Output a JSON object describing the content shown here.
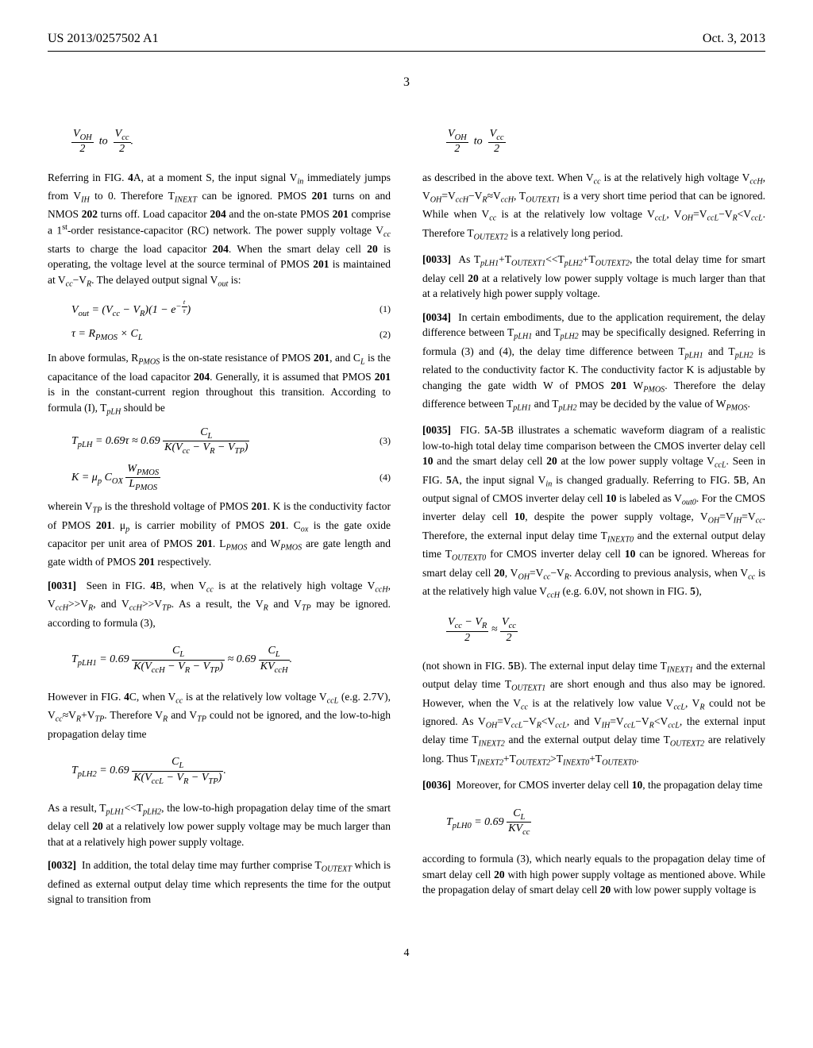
{
  "header": {
    "left": "US 2013/0257502 A1",
    "right": "Oct. 3, 2013"
  },
  "page_number_top": "3",
  "page_number_bottom": "4",
  "left_column": {
    "formula0": "V_OH/2 to V_cc/2.",
    "p1": "Referring in FIG. 4A, at a moment S, the input signal V_in immediately jumps from V_IH to 0. Therefore T_INEXT can be ignored. PMOS 201 turns on and NMOS 202 turns off. Load capacitor 204 and the on-state PMOS 201 comprise a 1st-order resistance-capacitor (RC) network. The power supply voltage V_cc starts to charge the load capacitor 204. When the smart delay cell 20 is operating, the voltage level at the source terminal of PMOS 201 is maintained at V_cc−V_R. The delayed output signal V_out is:",
    "eq1": "V_out = (V_cc − V_R)(1 − e^(−t/τ))",
    "eq1n": "(1)",
    "eq2": "τ = R_PMOS × C_L",
    "eq2n": "(2)",
    "p2": "In above formulas, R_PMOS is the on-state resistance of PMOS 201, and C_L is the capacitance of the load capacitor 204. Generally, it is assumed that PMOS 201 is in the constant-current region throughout this transition. According to formula (I), T_pLH should be",
    "eq3": "T_pLH = 0.69τ ≈ 0.69 C_L / K(V_cc − V_R − V_TP)",
    "eq3n": "(3)",
    "eq4": "K = μ_p C_OX  W_PMOS / L_PMOS",
    "eq4n": "(4)",
    "p3": "wherein V_TP is the threshold voltage of PMOS 201. K is the conductivity factor of PMOS 201. μ_p is carrier mobility of PMOS 201. C_ox is the gate oxide capacitor per unit area of PMOS 201. L_PMOS and W_PMOS are gate length and gate width of PMOS 201 respectively.",
    "p4_num": "[0031]",
    "p4": "Seen in FIG. 4B, when V_cc is at the relatively high voltage V_ccH, V_ccH>>V_R, and V_ccH>>V_TP. As a result, the V_R and V_TP may be ignored. according to formula (3),",
    "eq5": "T_pLH1 = 0.69 C_L / K(V_ccH − V_R − V_TP) ≈ 0.69 C_L / KV_ccH.",
    "p5": "However in FIG. 4C, when V_cc is at the relatively low voltage V_ccL (e.g. 2.7V), V_cc≈V_R+V_TP. Therefore V_R and V_TP could not be ignored, and the low-to-high propagation delay time",
    "eq6": "T_pLH2 = 0.69 C_L / K(V_ccL − V_R − V_TP).",
    "p6": "As a result, T_pLH1<<T_pLH2, the low-to-high propagation delay time of the smart delay cell 20 at a relatively low power supply voltage may be much larger than that at a relatively high power supply voltage.",
    "p7_num": "[0032]",
    "p7": "In addition, the total delay time may further comprise T_OUTEXT which is defined as external output delay time which represents the time for the output signal to transition from"
  },
  "right_column": {
    "formula0": "V_OH/2 to V_cc/2",
    "p1": "as described in the above text. When V_cc is at the relatively high voltage V_ccH, V_OH=V_ccH−V_R≈V_ccH, T_OUTEXT1 is a very short time period that can be ignored. While when V_cc is at the relatively low voltage V_ccL, V_OH=V_ccL−V_R<V_ccL. Therefore T_OUTEXT2 is a relatively long period.",
    "p2_num": "[0033]",
    "p2": "As T_pLH1+T_OUTEXT1<<T_pLH2+T_OUTEXT2, the total delay time for smart delay cell 20 at a relatively low power supply voltage is much larger than that at a relatively high power supply voltage.",
    "p3_num": "[0034]",
    "p3": "In certain embodiments, due to the application requirement, the delay difference between T_pLH1 and T_pLH2 may be specifically designed. Referring in formula (3) and (4), the delay time difference between T_pLH1 and T_pLH2 is related to the conductivity factor K. The conductivity factor K is adjustable by changing the gate width W of PMOS 201 W_PMOS. Therefore the delay difference between T_pLH1 and T_pLH2 may be decided by the value of W_PMOS.",
    "p4_num": "[0035]",
    "p4": "FIG. 5A-5B illustrates a schematic waveform diagram of a realistic low-to-high total delay time comparison between the CMOS inverter delay cell 10 and the smart delay cell 20 at the low power supply voltage V_ccL. Seen in FIG. 5A, the input signal V_in is changed gradually. Referring to FIG. 5B, An output signal of CMOS inverter delay cell 10 is labeled as V_out0. For the CMOS inverter delay cell 10, despite the power supply voltage, V_OH=V_IH=V_cc. Therefore, the external input delay time T_INEXT0 and the external output delay time T_OUTEXT0 for CMOS inverter delay cell 10 can be ignored. Whereas for smart delay cell 20, V_OH=V_cc−V_R. According to previous analysis, when V_cc is at the relatively high value V_ccH (e.g. 6.0V, not shown in FIG. 5),",
    "eq1": "(V_cc − V_R)/2 ≈ V_cc/2",
    "p5": "(not shown in FIG. 5B). The external input delay time T_INEXT1 and the external output delay time T_OUTEXT1 are short enough and thus also may be ignored. However, when the V_cc is at the relatively low value V_ccL, V_R could not be ignored. As V_OH=V_ccL−V_R<V_ccL, and V_IH=V_ccL−V_R<V_ccL, the external input delay time T_INEXT2 and the external output delay time T_OUTEXT2 are relatively long. Thus T_INEXT2+T_OUTEXT2>T_INEXT0+T_OUTEXT0.",
    "p6_num": "[0036]",
    "p6": "Moreover, for CMOS inverter delay cell 10, the propagation delay time",
    "eq2": "T_pLH0 = 0.69 C_L / KV_cc",
    "p7": "according to formula (3), which nearly equals to the propagation delay time of smart delay cell 20 with high power supply voltage as mentioned above. While the propagation delay of smart delay cell 20 with low power supply voltage is"
  }
}
